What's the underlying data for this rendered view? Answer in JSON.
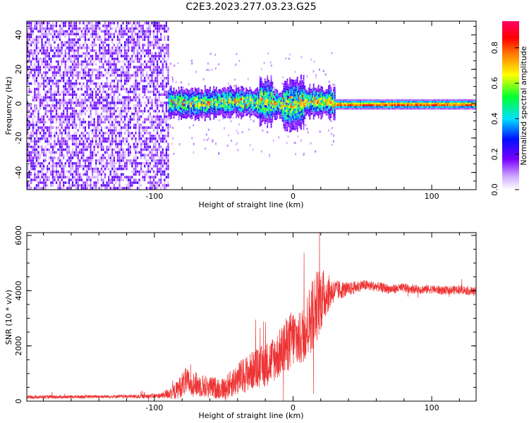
{
  "title": "C2E3.2023.277.03.23.G25",
  "chart_data": [
    {
      "type": "heatmap",
      "xlabel": "Height of straight line (km)",
      "ylabel": "Frequency (Hz)",
      "xlim": [
        -192,
        132
      ],
      "ylim": [
        -50,
        48
      ],
      "xticks": [
        -100,
        0,
        100
      ],
      "yticks": [
        -40,
        -20,
        0,
        20,
        40
      ],
      "grid": false,
      "colorbar": {
        "label": "Normalized spectral amplitude",
        "range": [
          0,
          0.95
        ],
        "ticks": [
          0,
          0.2,
          0.4,
          0.6,
          0.8
        ]
      },
      "regions": [
        {
          "x": [
            -192,
            -90
          ],
          "y": [
            -50,
            48
          ],
          "amplitude": 0.12,
          "desc_level": "noise"
        },
        {
          "x": [
            -90,
            30
          ],
          "y": [
            -10,
            8
          ],
          "amplitude": 0.45
        },
        {
          "x": [
            30,
            132
          ],
          "y": [
            -2,
            2
          ],
          "amplitude": 0.7
        }
      ]
    },
    {
      "type": "line",
      "xlabel": "Height of straight line (km)",
      "ylabel": "SNR (10 * v/v)",
      "xlim": [
        -192,
        132
      ],
      "ylim": [
        0,
        6100
      ],
      "xticks": [
        -100,
        0,
        100
      ],
      "yticks": [
        0,
        2000,
        4000,
        6000
      ],
      "color": "#ee3333",
      "grid": false,
      "x": [
        -192,
        -170,
        -150,
        -130,
        -110,
        -95,
        -85,
        -78,
        -70,
        -60,
        -50,
        -40,
        -30,
        -20,
        -10,
        -5,
        0,
        5,
        10,
        15,
        20,
        25,
        30,
        40,
        50,
        60,
        70,
        80,
        90,
        100,
        110,
        120,
        132
      ],
      "y": [
        150,
        150,
        160,
        170,
        170,
        200,
        350,
        700,
        600,
        500,
        450,
        800,
        1100,
        1300,
        1700,
        2000,
        2300,
        2200,
        2700,
        3300,
        3700,
        3900,
        4000,
        4050,
        4200,
        4150,
        4050,
        4100,
        4050,
        4050,
        4000,
        4050,
        3950
      ],
      "noise_amplitude": [
        60,
        60,
        60,
        60,
        70,
        100,
        300,
        500,
        450,
        400,
        400,
        600,
        700,
        800,
        900,
        1000,
        1100,
        1000,
        1200,
        1400,
        1200,
        700,
        400,
        250,
        200,
        180,
        170,
        170,
        170,
        160,
        160,
        160,
        160
      ]
    }
  ]
}
